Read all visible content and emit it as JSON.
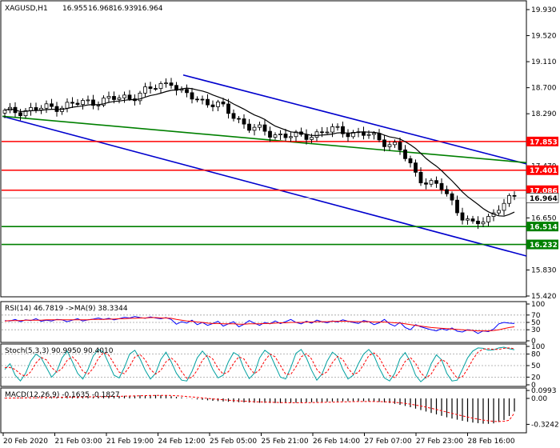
{
  "chart_data": [
    {
      "type": "candlestick",
      "header": {
        "symbol": "XAGUSD,H1",
        "ohlc": [
          "16.955",
          "16.968",
          "16.939",
          "16.964"
        ]
      },
      "ylim": [
        15.42,
        19.93
      ],
      "y_ticks": [
        "19.930",
        "19.520",
        "19.110",
        "18.700",
        "18.290",
        "17.470",
        "16.650",
        "15.830",
        "15.420"
      ],
      "x_labels": [
        "20 Feb 2020",
        "21 Feb 03:00",
        "21 Feb 19:00",
        "24 Feb 12:00",
        "25 Feb 05:00",
        "25 Feb 21:00",
        "26 Feb 14:00",
        "27 Feb 07:00",
        "27 Feb 23:00",
        "28 Feb 16:00"
      ],
      "current_price": {
        "value": 16.964,
        "label": "16.964"
      },
      "levels": [
        {
          "value": 17.853,
          "label": "17.853",
          "color": "#ff0000"
        },
        {
          "value": 17.401,
          "label": "17.401",
          "color": "#ff0000"
        },
        {
          "value": 17.086,
          "label": "17.086",
          "color": "#ff0000"
        },
        {
          "value": 16.514,
          "label": "16.514",
          "color": "#008000"
        },
        {
          "value": 16.232,
          "label": "16.232",
          "color": "#008000"
        }
      ],
      "channel_color": "#0000cd",
      "trendline_color": "#008000",
      "ma_color": "#000000"
    },
    {
      "type": "line",
      "title": "RSI(14) 46.7819  ->MA(9) 38.3344",
      "ylim": [
        0,
        100
      ],
      "y_ticks": [
        "100",
        "70",
        "50",
        "30",
        "0"
      ],
      "series": [
        {
          "name": "RSI(14)",
          "color": "#0000ff",
          "values": [
            55,
            54,
            58,
            52,
            57,
            55,
            60,
            53,
            56,
            54,
            58,
            57,
            52,
            56,
            60,
            54,
            57,
            59,
            62,
            58,
            61,
            57,
            60,
            64,
            62,
            66,
            63,
            61,
            65,
            62,
            60,
            63,
            58,
            45,
            52,
            48,
            56,
            44,
            50,
            42,
            47,
            53,
            40,
            46,
            52,
            38,
            45,
            55,
            48,
            42,
            50,
            46,
            54,
            47,
            52,
            58,
            50,
            46,
            53,
            48,
            56,
            52,
            49,
            54,
            51,
            57,
            53,
            50,
            47,
            55,
            52,
            44,
            49,
            58,
            46,
            40,
            50,
            36,
            30,
            44,
            38,
            34,
            30,
            27,
            33,
            29,
            35,
            26,
            24,
            30,
            28,
            20,
            27,
            25,
            32,
            46,
            50,
            48,
            47
          ]
        },
        {
          "name": "MA(9)",
          "color": "#ff0000",
          "values": [
            54,
            55,
            55,
            55,
            56,
            56,
            56,
            56,
            57,
            57,
            57,
            57,
            57,
            57,
            57,
            57,
            57,
            58,
            58,
            58,
            59,
            59,
            60,
            60,
            61,
            61,
            62,
            62,
            63,
            63,
            62,
            62,
            61,
            58,
            56,
            54,
            53,
            51,
            50,
            48,
            47,
            47,
            46,
            46,
            46,
            45,
            45,
            46,
            46,
            46,
            47,
            47,
            48,
            49,
            49,
            50,
            50,
            50,
            51,
            51,
            52,
            52,
            52,
            53,
            53,
            53,
            53,
            52,
            52,
            52,
            52,
            51,
            51,
            51,
            50,
            49,
            48,
            46,
            44,
            42,
            40,
            38,
            36,
            35,
            34,
            33,
            32,
            31,
            30,
            29,
            28,
            27,
            27,
            27,
            28,
            30,
            33,
            36,
            38
          ]
        }
      ]
    },
    {
      "type": "line",
      "title": "Stoch(5,3,3) 90.9950 90.4010",
      "ylim": [
        0,
        100
      ],
      "y_ticks": [
        "100",
        "80",
        "50",
        "20",
        "0"
      ],
      "series": [
        {
          "name": "%K",
          "color": "#00a0a0",
          "values": [
            40,
            55,
            25,
            10,
            30,
            62,
            80,
            70,
            45,
            20,
            35,
            70,
            88,
            60,
            30,
            15,
            40,
            75,
            92,
            85,
            55,
            25,
            18,
            45,
            80,
            90,
            68,
            38,
            15,
            30,
            66,
            85,
            60,
            30,
            12,
            10,
            35,
            70,
            88,
            72,
            40,
            18,
            25,
            60,
            84,
            76,
            42,
            16,
            30,
            70,
            90,
            80,
            50,
            20,
            15,
            45,
            82,
            92,
            70,
            38,
            12,
            28,
            62,
            85,
            74,
            40,
            15,
            25,
            55,
            80,
            92,
            76,
            44,
            18,
            10,
            30,
            68,
            84,
            60,
            25,
            8,
            20,
            55,
            78,
            65,
            30,
            10,
            12,
            40,
            70,
            88,
            96,
            95,
            90,
            91,
            96,
            98,
            94,
            91
          ]
        },
        {
          "name": "%D",
          "color": "#ff0000",
          "values": [
            45,
            45,
            40,
            28,
            22,
            34,
            57,
            71,
            65,
            45,
            33,
            42,
            64,
            73,
            59,
            35,
            28,
            43,
            69,
            84,
            77,
            55,
            33,
            29,
            48,
            72,
            79,
            65,
            40,
            28,
            37,
            60,
            70,
            58,
            34,
            17,
            19,
            38,
            64,
            77,
            67,
            43,
            28,
            34,
            56,
            73,
            67,
            45,
            29,
            39,
            63,
            80,
            73,
            50,
            28,
            27,
            47,
            73,
            81,
            67,
            40,
            26,
            34,
            58,
            74,
            66,
            43,
            27,
            32,
            53,
            76,
            83,
            71,
            46,
            24,
            19,
            36,
            61,
            71,
            56,
            31,
            18,
            28,
            51,
            66,
            58,
            35,
            17,
            21,
            41,
            66,
            85,
            93,
            94,
            92,
            92,
            95,
            96,
            94
          ]
        }
      ]
    },
    {
      "type": "bar",
      "title": "MACD(12,26,9) -0.1635 -0.1827",
      "ylim": [
        -0.4,
        0.1
      ],
      "y_ticks": [
        "0.0993",
        "0.00",
        "-0.3242"
      ],
      "series": [
        {
          "name": "MACD",
          "color": "#000000",
          "values": [
            0.004,
            0.005,
            0.006,
            0.007,
            0.008,
            0.009,
            0.01,
            0.011,
            0.012,
            0.013,
            0.014,
            0.015,
            0.016,
            0.017,
            0.018,
            0.019,
            0.02,
            0.021,
            0.022,
            0.024,
            0.026,
            0.028,
            0.03,
            0.032,
            0.034,
            0.036,
            0.038,
            0.04,
            0.041,
            0.042,
            0.04,
            0.035,
            0.028,
            0.02,
            0.012,
            0.004,
            -0.004,
            -0.012,
            -0.018,
            -0.024,
            -0.03,
            -0.034,
            -0.038,
            -0.042,
            -0.046,
            -0.048,
            -0.05,
            -0.052,
            -0.054,
            -0.055,
            -0.056,
            -0.057,
            -0.058,
            -0.058,
            -0.057,
            -0.056,
            -0.054,
            -0.052,
            -0.05,
            -0.048,
            -0.046,
            -0.044,
            -0.042,
            -0.04,
            -0.038,
            -0.036,
            -0.035,
            -0.034,
            -0.034,
            -0.035,
            -0.037,
            -0.04,
            -0.044,
            -0.05,
            -0.058,
            -0.068,
            -0.08,
            -0.094,
            -0.11,
            -0.128,
            -0.146,
            -0.164,
            -0.182,
            -0.2,
            -0.218,
            -0.236,
            -0.252,
            -0.266,
            -0.28,
            -0.292,
            -0.302,
            -0.31,
            -0.316,
            -0.318,
            -0.312,
            -0.296,
            -0.27,
            -0.22,
            -0.164
          ]
        },
        {
          "name": "Signal",
          "color": "#ff0000",
          "values": [
            0.003,
            0.004,
            0.005,
            0.006,
            0.007,
            0.008,
            0.009,
            0.01,
            0.011,
            0.012,
            0.013,
            0.014,
            0.015,
            0.016,
            0.017,
            0.018,
            0.019,
            0.02,
            0.021,
            0.022,
            0.023,
            0.025,
            0.026,
            0.028,
            0.03,
            0.031,
            0.033,
            0.035,
            0.036,
            0.037,
            0.038,
            0.038,
            0.036,
            0.033,
            0.029,
            0.024,
            0.018,
            0.012,
            0.006,
            0.0,
            -0.006,
            -0.012,
            -0.017,
            -0.022,
            -0.027,
            -0.031,
            -0.035,
            -0.038,
            -0.041,
            -0.044,
            -0.046,
            -0.048,
            -0.05,
            -0.052,
            -0.053,
            -0.054,
            -0.054,
            -0.054,
            -0.053,
            -0.052,
            -0.051,
            -0.05,
            -0.048,
            -0.047,
            -0.045,
            -0.043,
            -0.042,
            -0.04,
            -0.039,
            -0.039,
            -0.039,
            -0.039,
            -0.04,
            -0.042,
            -0.045,
            -0.049,
            -0.055,
            -0.062,
            -0.072,
            -0.083,
            -0.095,
            -0.109,
            -0.123,
            -0.139,
            -0.154,
            -0.171,
            -0.187,
            -0.203,
            -0.218,
            -0.233,
            -0.247,
            -0.259,
            -0.271,
            -0.28,
            -0.287,
            -0.289,
            -0.286,
            -0.273,
            -0.183
          ]
        }
      ]
    }
  ]
}
